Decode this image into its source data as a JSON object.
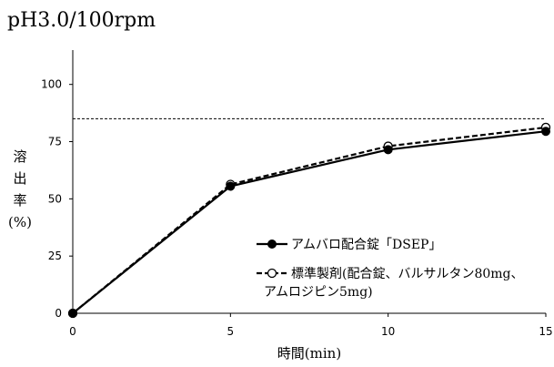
{
  "chart_data": {
    "type": "line",
    "title": "pH3.0/100rpm",
    "xlabel": "時間(min)",
    "ylabel": [
      "溶",
      "出",
      "率",
      "(%)"
    ],
    "x": [
      0,
      5,
      10,
      15
    ],
    "x_ticks": [
      "0",
      "5",
      "10",
      "15"
    ],
    "y_ticks": [
      "0",
      "25",
      "50",
      "75",
      "100"
    ],
    "xlim": [
      0,
      15
    ],
    "ylim": [
      0,
      115
    ],
    "reference_line": 85,
    "grid": false,
    "legend_position": "bottom-right",
    "series": [
      {
        "name": "アムバロ配合錠「DSEP」",
        "marker": "filled-circle",
        "line": "solid",
        "values": [
          0,
          55.5,
          71.5,
          79.5
        ]
      },
      {
        "name": "標準製剤(配合錠、バルサルタン80mg、アムロジピン5mg)",
        "name_lines": [
          "標準製剤(配合錠、バルサルタン80mg、",
          "アムロジピン5mg)"
        ],
        "marker": "open-circle",
        "line": "dashed",
        "values": [
          0,
          56.3,
          73.0,
          81.2
        ]
      }
    ]
  }
}
